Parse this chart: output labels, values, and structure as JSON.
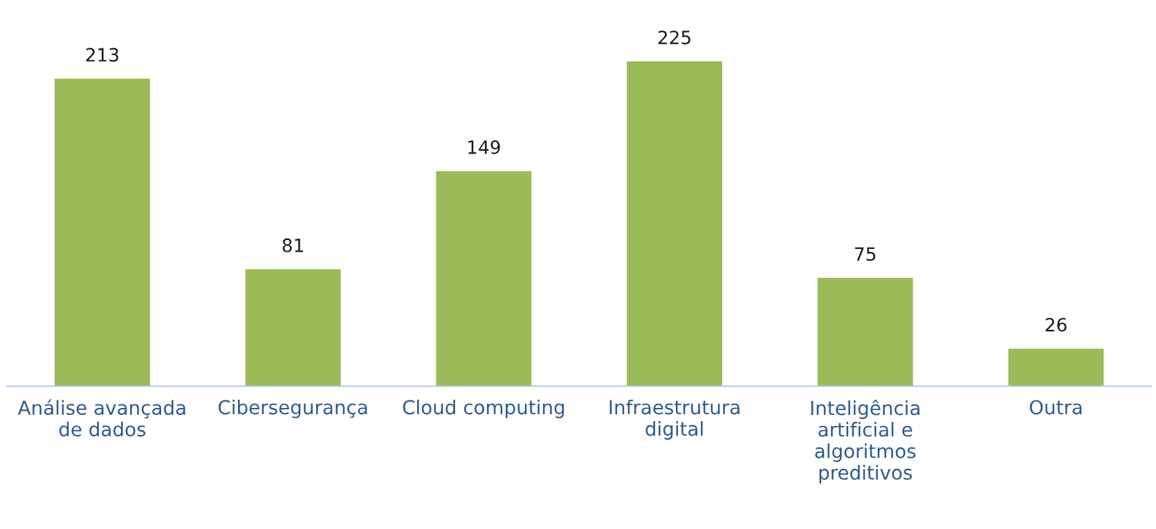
{
  "chart_data": {
    "type": "bar",
    "categories": [
      "Análise avançada\nde dados",
      "Cibersegurança",
      "Cloud computing",
      "Infraestrutura\ndigital",
      "Inteligência\nartificial e\nalgoritmos\npreditivos",
      "Outra"
    ],
    "values": [
      213,
      81,
      149,
      225,
      75,
      26
    ],
    "color": "#9bbb59",
    "data_labels": true,
    "grid": false
  }
}
